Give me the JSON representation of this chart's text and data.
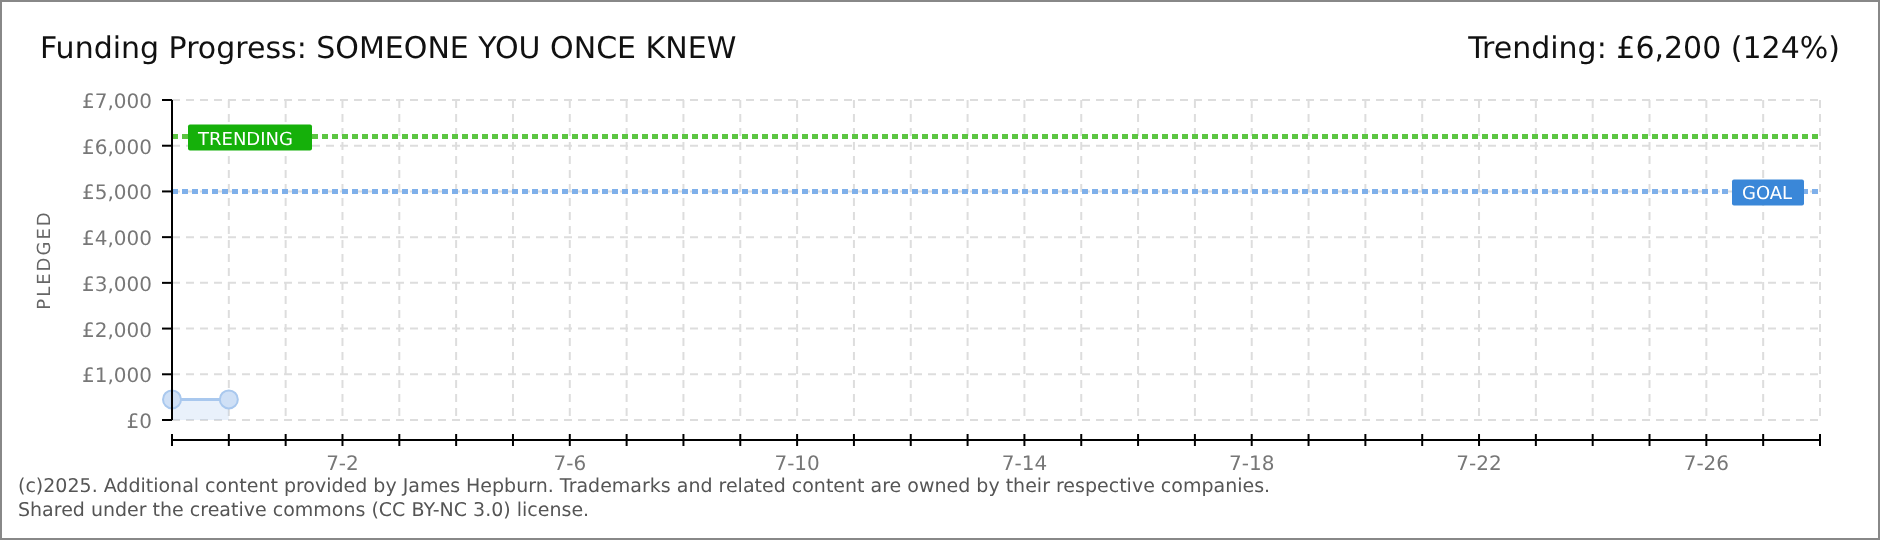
{
  "chart_data": {
    "type": "area",
    "title": "Funding Progress: SOMEONE YOU ONCE KNEW",
    "subtitle": "Trending: £6,200 (124%)",
    "ylabel": "PLEDGED",
    "x": [
      "--06-29",
      "--06-30"
    ],
    "series": [
      {
        "color": "#a9c8ee",
        "values": [
          450,
          450
        ]
      }
    ],
    "marker": "circle",
    "grid": true,
    "xlim": [
      "--06-29",
      "--07-28"
    ],
    "xticks": [
      {
        "value": "--06-29",
        "label": null
      },
      {
        "value": "--06-30",
        "label": null
      },
      {
        "value": "--07-01",
        "label": null
      },
      {
        "value": "--07-02",
        "label": "7-2"
      },
      {
        "value": "--07-03",
        "label": null
      },
      {
        "value": "--07-04",
        "label": null
      },
      {
        "value": "--07-05",
        "label": null
      },
      {
        "value": "--07-06",
        "label": "7-6"
      },
      {
        "value": "--07-07",
        "label": null
      },
      {
        "value": "--07-08",
        "label": null
      },
      {
        "value": "--07-09",
        "label": null
      },
      {
        "value": "--07-10",
        "label": "7-10"
      },
      {
        "value": "--07-11",
        "label": null
      },
      {
        "value": "--07-12",
        "label": null
      },
      {
        "value": "--07-13",
        "label": null
      },
      {
        "value": "--07-14",
        "label": "7-14"
      },
      {
        "value": "--07-15",
        "label": null
      },
      {
        "value": "--07-16",
        "label": null
      },
      {
        "value": "--07-17",
        "label": null
      },
      {
        "value": "--07-18",
        "label": "7-18"
      },
      {
        "value": "--07-19",
        "label": null
      },
      {
        "value": "--07-20",
        "label": null
      },
      {
        "value": "--07-21",
        "label": null
      },
      {
        "value": "--07-22",
        "label": "7-22"
      },
      {
        "value": "--07-23",
        "label": null
      },
      {
        "value": "--07-24",
        "label": null
      },
      {
        "value": "--07-25",
        "label": null
      },
      {
        "value": "--07-26",
        "label": "7-26"
      },
      {
        "value": "--07-27",
        "label": null
      },
      {
        "value": "--07-28",
        "label": null
      }
    ],
    "ylim": [
      0,
      7000
    ],
    "yticks": [
      {
        "value": 0,
        "label": "£0"
      },
      {
        "value": 1000,
        "label": "£1,000"
      },
      {
        "value": 2000,
        "label": "£2,000"
      },
      {
        "value": 3000,
        "label": "£3,000"
      },
      {
        "value": 4000,
        "label": "£4,000"
      },
      {
        "value": 5000,
        "label": "£5,000"
      },
      {
        "value": 6000,
        "label": "£6,000"
      },
      {
        "value": 7000,
        "label": "£7,000"
      }
    ],
    "ref_lines": [
      {
        "axis": "y",
        "value": 6200,
        "label": "TRENDING",
        "color": "#5cc542",
        "line_style": "dotted"
      },
      {
        "axis": "y",
        "value": 5000,
        "label": "GOAL",
        "color": "#7fb0ea",
        "line_style": "dotted"
      }
    ],
    "annotations": [
      "(c)2025. Additional content provided by James Hepburn. Trademarks and related content are owned by their respective companies.",
      "Shared under the creative commons (CC BY-NC 3.0) license."
    ]
  }
}
